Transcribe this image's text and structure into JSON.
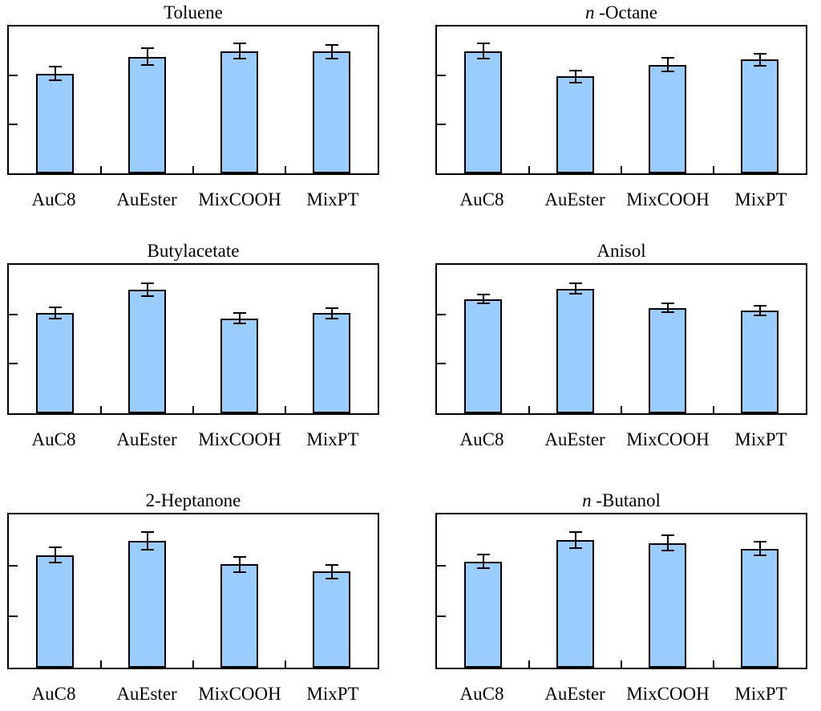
{
  "figure": {
    "background": "#ffffff",
    "bar_fill_color": "#99CCFF",
    "bar_border_color": "#000000",
    "error_bar_color": "#000000",
    "axis_frame_color": "#000000",
    "text_color": "#000000"
  },
  "chart_data": [
    {
      "type": "bar",
      "title": {
        "italic": "",
        "text": "Toluene"
      },
      "categories": [
        "AuC8",
        "AuEster",
        "MixCOOH",
        "MixPT"
      ],
      "values": [
        2.04,
        2.38,
        2.5,
        2.49
      ],
      "errors": [
        0.14,
        0.17,
        0.16,
        0.14
      ],
      "xlabel": "",
      "ylabel": "",
      "ylim": [
        0,
        3
      ],
      "yticks": [
        1,
        2
      ],
      "yticklabels": [],
      "grid": false,
      "legend": "none",
      "grid_position": {
        "row": 0,
        "col": 0
      }
    },
    {
      "type": "bar",
      "title": {
        "italic": "n",
        "text": " -Octane"
      },
      "categories": [
        "AuC8",
        "AuEster",
        "MixCOOH",
        "MixPT"
      ],
      "values": [
        2.5,
        1.98,
        2.22,
        2.32
      ],
      "errors": [
        0.16,
        0.12,
        0.14,
        0.13
      ],
      "xlabel": "",
      "ylabel": "",
      "ylim": [
        0,
        3
      ],
      "yticks": [
        1,
        2
      ],
      "yticklabels": [],
      "grid": false,
      "legend": "none",
      "grid_position": {
        "row": 0,
        "col": 1
      }
    },
    {
      "type": "bar",
      "title": {
        "italic": "",
        "text": "Butylacetate"
      },
      "categories": [
        "AuC8",
        "AuEster",
        "MixCOOH",
        "MixPT"
      ],
      "values": [
        2.03,
        2.5,
        1.92,
        2.02
      ],
      "errors": [
        0.11,
        0.13,
        0.1,
        0.11
      ],
      "xlabel": "",
      "ylabel": "",
      "ylim": [
        0,
        3
      ],
      "yticks": [
        1,
        2
      ],
      "yticklabels": [],
      "grid": false,
      "legend": "none",
      "grid_position": {
        "row": 1,
        "col": 0
      }
    },
    {
      "type": "bar",
      "title": {
        "italic": "",
        "text": "Anisol"
      },
      "categories": [
        "AuC8",
        "AuEster",
        "MixCOOH",
        "MixPT"
      ],
      "values": [
        2.31,
        2.52,
        2.13,
        2.08
      ],
      "errors": [
        0.09,
        0.11,
        0.09,
        0.1
      ],
      "xlabel": "",
      "ylabel": "",
      "ylim": [
        0,
        3
      ],
      "yticks": [
        1,
        2
      ],
      "yticklabels": [],
      "grid": false,
      "legend": "none",
      "grid_position": {
        "row": 1,
        "col": 1
      }
    },
    {
      "type": "bar",
      "title": {
        "italic": "",
        "text": "2-Heptanone"
      },
      "categories": [
        "AuC8",
        "AuEster",
        "MixCOOH",
        "MixPT"
      ],
      "values": [
        2.2,
        2.48,
        2.02,
        1.88
      ],
      "errors": [
        0.15,
        0.17,
        0.15,
        0.13
      ],
      "xlabel": "",
      "ylabel": "",
      "ylim": [
        0,
        3
      ],
      "yticks": [
        1,
        2
      ],
      "yticklabels": [],
      "grid": false,
      "legend": "none",
      "grid_position": {
        "row": 2,
        "col": 0
      }
    },
    {
      "type": "bar",
      "title": {
        "italic": "n",
        "text": " -Butanol"
      },
      "categories": [
        "AuC8",
        "AuEster",
        "MixCOOH",
        "MixPT"
      ],
      "values": [
        2.08,
        2.5,
        2.44,
        2.33
      ],
      "errors": [
        0.13,
        0.16,
        0.15,
        0.13
      ],
      "xlabel": "",
      "ylabel": "",
      "ylim": [
        0,
        3
      ],
      "yticks": [
        1,
        2
      ],
      "yticklabels": [],
      "grid": false,
      "legend": "none",
      "grid_position": {
        "row": 2,
        "col": 1
      }
    }
  ]
}
